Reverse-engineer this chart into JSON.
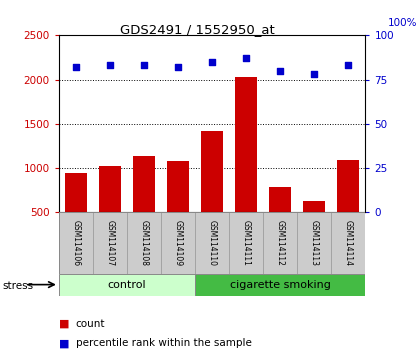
{
  "title": "GDS2491 / 1552950_at",
  "samples": [
    "GSM114106",
    "GSM114107",
    "GSM114108",
    "GSM114109",
    "GSM114110",
    "GSM114111",
    "GSM114112",
    "GSM114113",
    "GSM114114"
  ],
  "counts": [
    950,
    1020,
    1140,
    1085,
    1420,
    2030,
    790,
    630,
    1090
  ],
  "percentile_ranks": [
    82,
    83,
    83,
    82,
    85,
    87,
    80,
    78,
    83
  ],
  "bar_color": "#cc0000",
  "scatter_color": "#0000cc",
  "ylim_left": [
    500,
    2500
  ],
  "ylim_right": [
    0,
    100
  ],
  "yticks_left": [
    500,
    1000,
    1500,
    2000,
    2500
  ],
  "yticks_right": [
    0,
    25,
    50,
    75,
    100
  ],
  "label_count": "count",
  "label_percentile": "percentile rank within the sample",
  "stress_label": "stress",
  "bar_width": 0.65,
  "control_light": "#ccffcc",
  "smoking_green": "#44bb44",
  "gray_label": "#cccccc"
}
